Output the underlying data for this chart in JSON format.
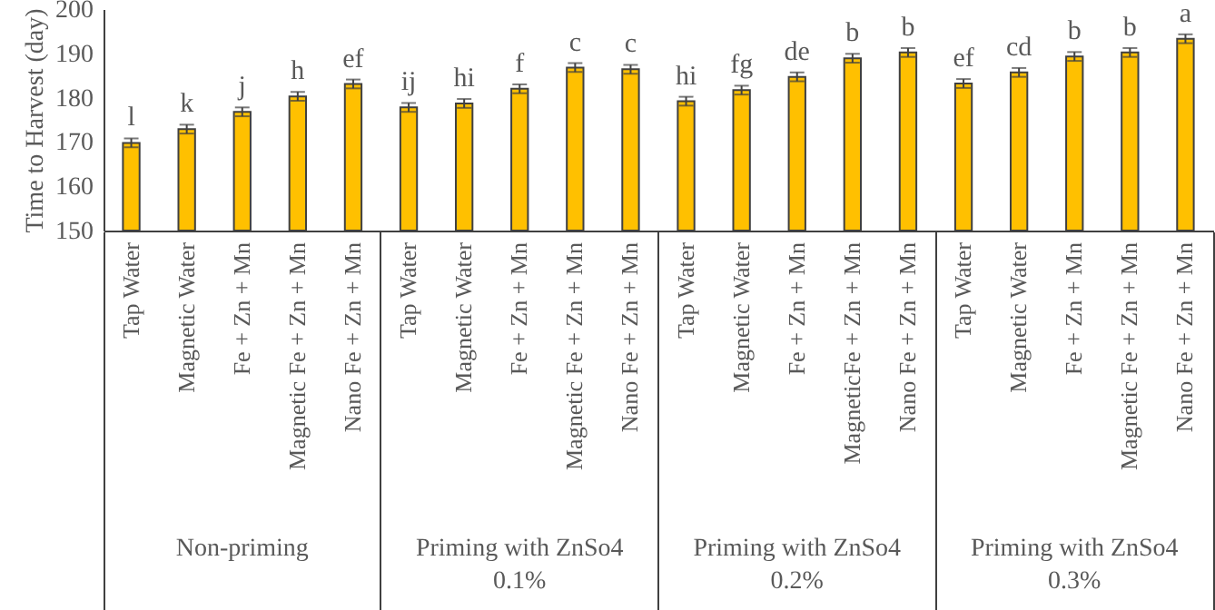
{
  "chart_data": {
    "type": "bar",
    "ylabel": "Time to Harvest (day)",
    "categories": [
      "Tap Water",
      "Magnetic Water",
      "Fe + Zn + Mn",
      "Magnetic Fe + Zn + Mn",
      "Nano Fe + Zn + Mn",
      "Tap Water",
      "Magnetic Water",
      "Fe + Zn + Mn",
      "Magnetic Fe + Zn + Mn",
      "Nano Fe + Zn + Mn",
      "Tap Water",
      "Magnetic Water",
      "Fe + Zn + Mn",
      "MagneticFe + Zn + Mn",
      "Nano Fe + Zn + Mn",
      "Tap Water",
      "Magnetic Water",
      "Fe + Zn + Mn",
      "Magnetic Fe + Zn + Mn",
      "Nano Fe + Zn + Mn"
    ],
    "values": [
      169.8,
      172.9,
      176.8,
      180.3,
      183.1,
      177.8,
      178.7,
      182,
      186.8,
      186.4,
      179.2,
      181.7,
      184.7,
      188.9,
      190.2,
      183.2,
      185.7,
      189.3,
      190.2,
      193.3
    ],
    "errors": [
      1,
      1,
      1,
      1,
      1,
      1,
      1,
      1,
      1,
      1,
      1,
      1,
      1,
      1,
      1,
      1,
      1,
      1,
      1,
      1
    ],
    "value_labels": [
      "l",
      "k",
      "j",
      "h",
      "ef",
      "ij",
      "hi",
      "f",
      "c",
      "c",
      "hi",
      "fg",
      "de",
      "b",
      "b",
      "ef",
      "cd",
      "b",
      "b",
      "a"
    ],
    "color": "#ffc000",
    "ylim": [
      150,
      200
    ],
    "yticks": [
      150,
      160,
      170,
      180,
      190,
      200
    ],
    "grid": false,
    "annotations": [
      "Non-priming",
      "Priming with ZnSo4\n0.1%",
      "Priming with ZnSo4\n0.2%",
      "Priming with ZnSo4\n0.3%"
    ]
  }
}
